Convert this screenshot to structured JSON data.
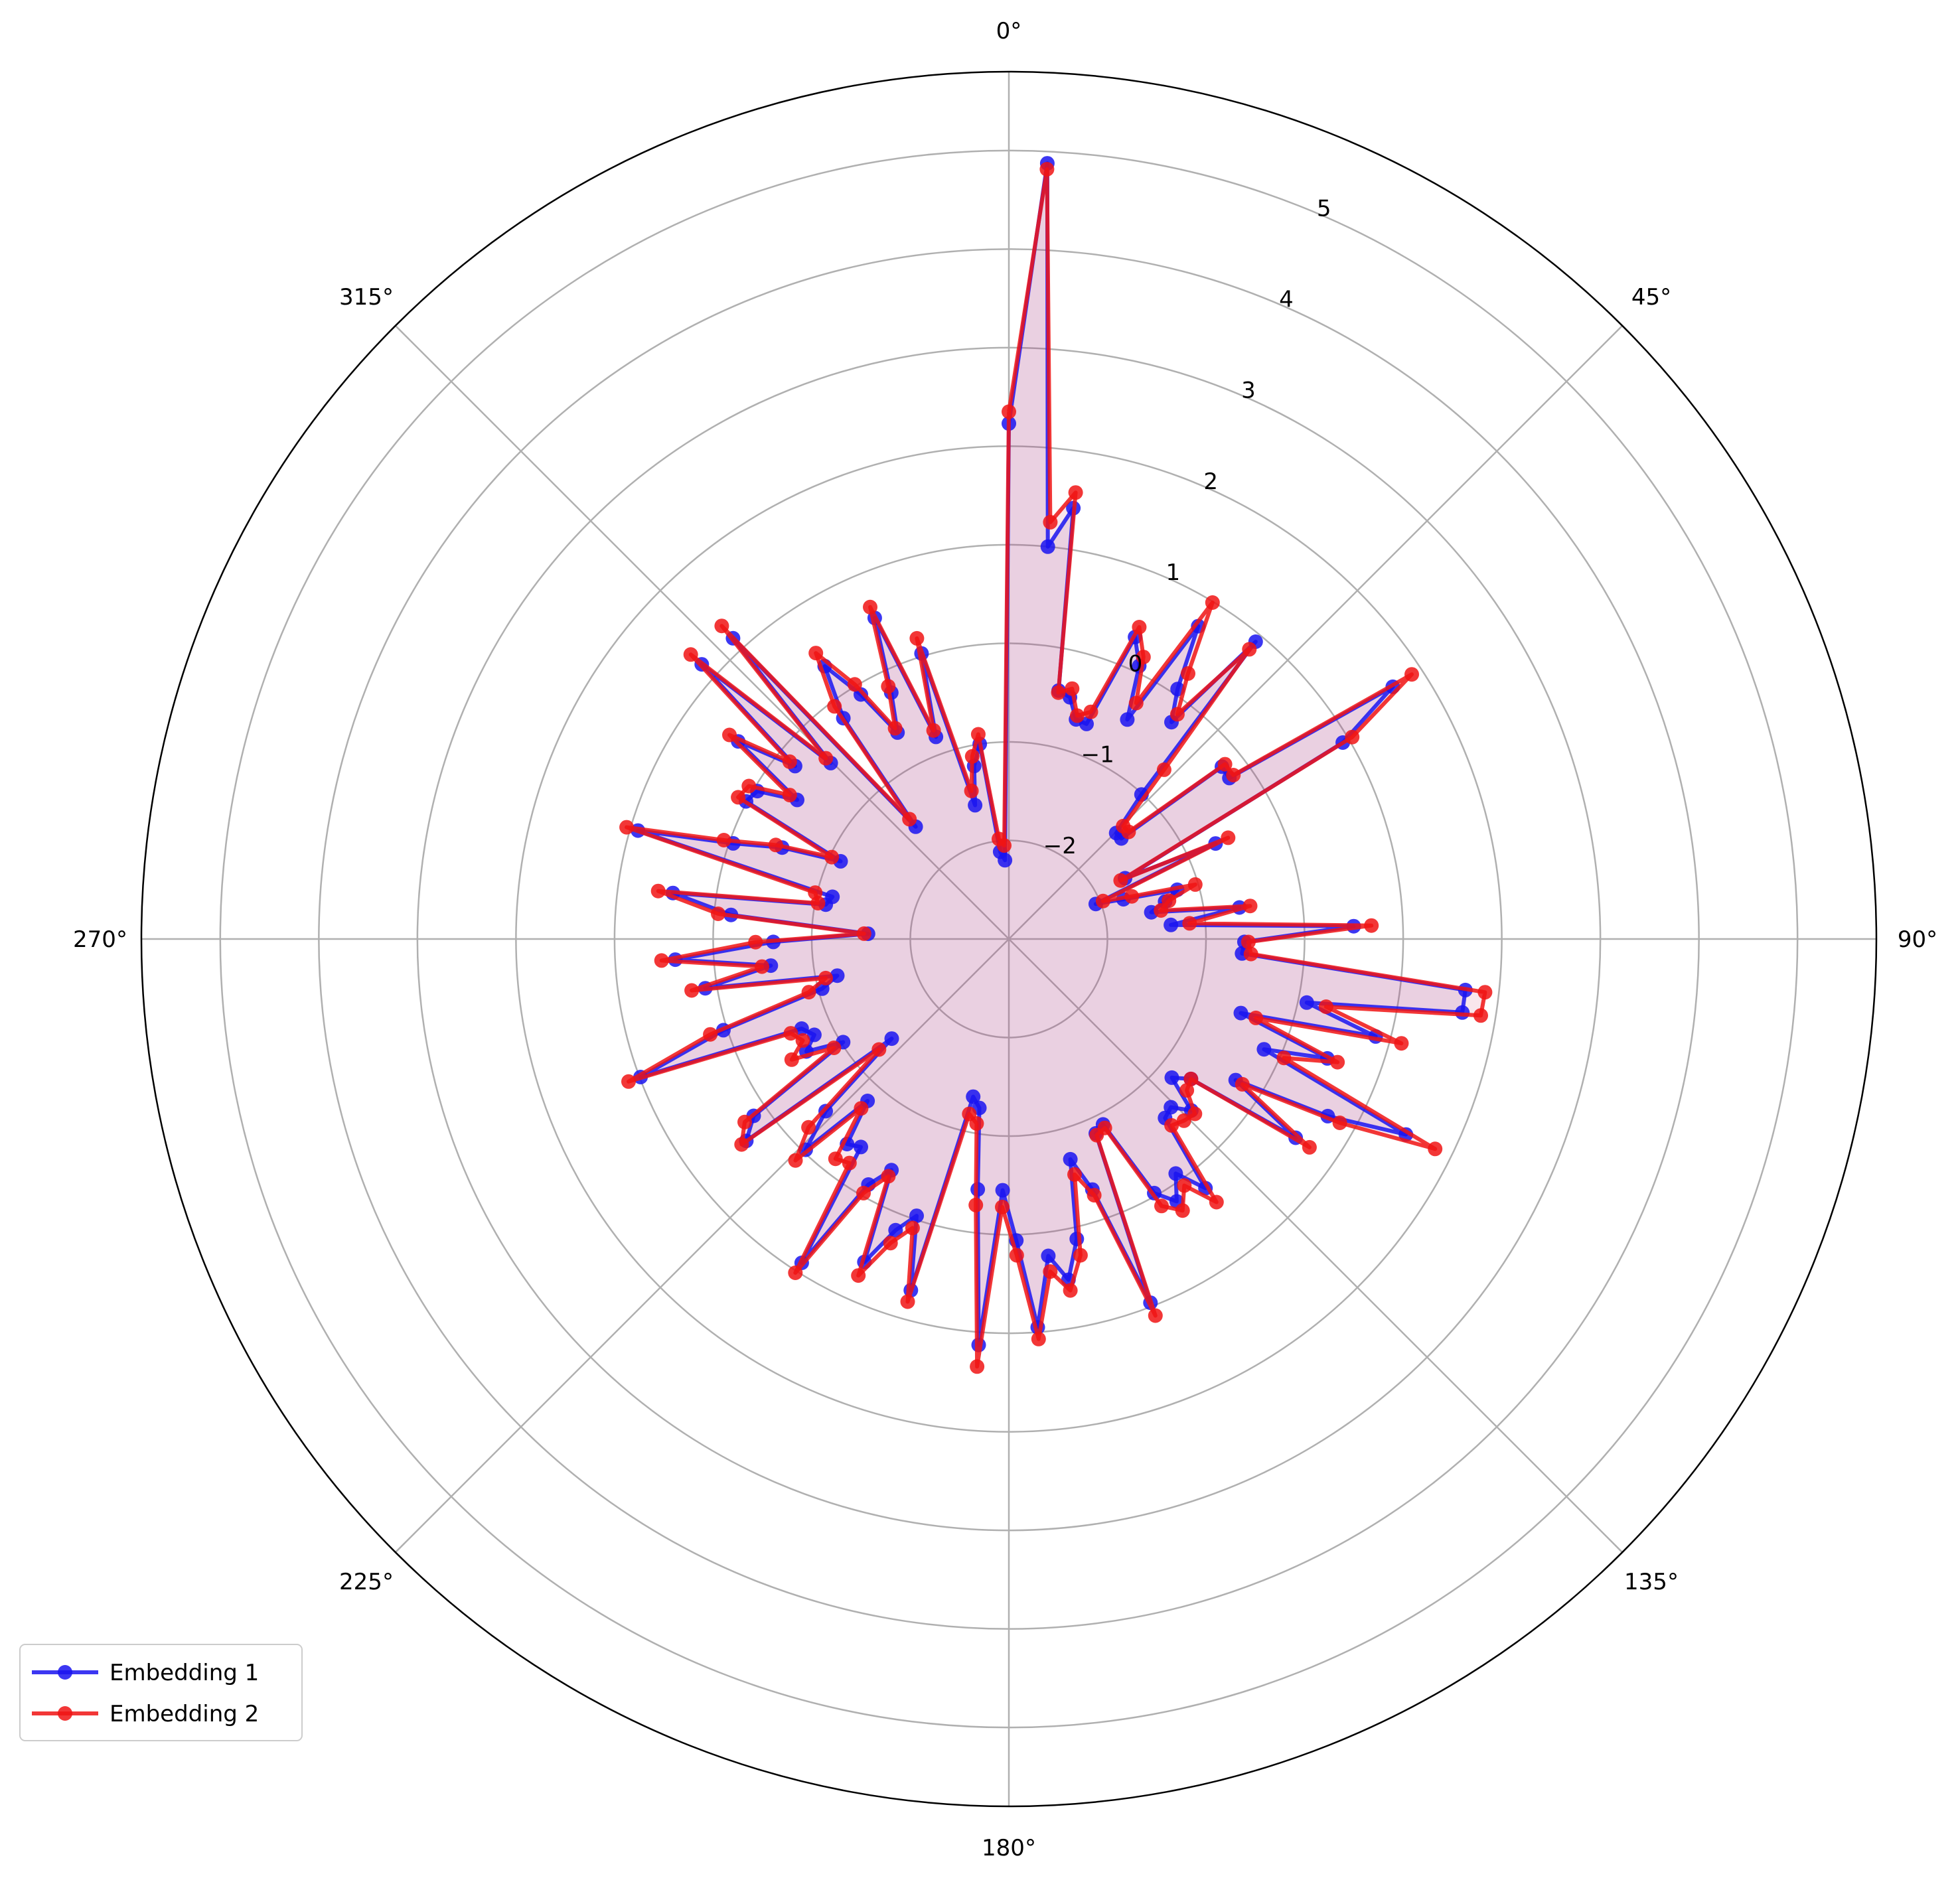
{
  "chart_data": {
    "type": "radar",
    "title": "",
    "angle_ticks": [
      "0°",
      "45°",
      "90°",
      "135°",
      "180°",
      "225°",
      "270°",
      "315°"
    ],
    "radial_ticks": [
      -2,
      -1,
      0,
      1,
      2,
      3,
      4,
      5
    ],
    "radial_tick_labels": [
      "−2",
      "−1",
      "0",
      "1",
      "2",
      "3",
      "4",
      "5"
    ],
    "rlim": [
      -3.0,
      5.8
    ],
    "theta_zero": "top",
    "theta_direction": "clockwise",
    "grid": true,
    "fill_color": "#e7cde6",
    "legend": {
      "location": "lower-left",
      "entries": [
        "Embedding 1",
        "Embedding 2"
      ]
    },
    "series": [
      {
        "name": "Embedding 1",
        "color": "#1a14f0",
        "values": [
          2.23,
          4.88,
          1.0,
          1.42,
          -0.43,
          -0.47,
          -0.67,
          -0.68,
          0.32,
          0.07,
          -0.47,
          0.71,
          0.06,
          -0.25,
          0.92,
          -1.01,
          -1.47,
          -1.47,
          -0.22,
          -0.23,
          1.66,
          0.93,
          -1.67,
          -0.69,
          -2.05,
          -1.77,
          -1.22,
          -1.37,
          -1.53,
          -0.64,
          -1.35,
          0.5,
          -0.61,
          -0.63,
          1.66,
          1.66,
          0.09,
          0.85,
          -0.53,
          0.45,
          -0.18,
          1.49,
          0.7,
          -0.29,
          0.54,
          -0.67,
          -0.83,
          -0.46,
          -0.63,
          -0.59,
          0.22,
          -0.08,
          0.16,
          -0.03,
          -0.89,
          -0.84,
          0.96,
          -0.32,
          -0.68,
          0.12,
          0.51,
          0.24,
          0.95,
          0.06,
          -0.45,
          1.13,
          -0.44,
          -1.26,
          -1.36,
          0.7,
          -0.04,
          0.17,
          0.59,
          -0.37,
          -0.13,
          0.9,
          -0.41,
          -0.35,
          -0.82,
          -0.03,
          -0.45,
          -1.44,
          0.36,
          0.15,
          -1.02,
          -0.65,
          -0.8,
          -0.71,
          0.99,
          0.04,
          -1.04,
          -1.22,
          0.12,
          -0.57,
          0.39,
          -0.61,
          -1.57,
          -0.17,
          0.44,
          -1.11,
          -1.16,
          0.92,
          -0.04,
          -0.52,
          -1.12,
          0.01,
          -0.04,
          -0.43,
          0.4,
          -0.21,
          1.18,
          -0.46,
          1.14,
          -1.52,
          -0.2,
          0.34,
          -0.1,
          -0.62,
          -0.23,
          0.53,
          -0.82,
          0.03,
          -1.6,
          -1.21,
          -1.0,
          -2.11,
          -2.2
        ],
        "values_note": ""
      },
      {
        "name": "Embedding 2",
        "color": "#f01414",
        "values": [
          2.35,
          4.82,
          1.25,
          1.58,
          -0.45,
          -0.38,
          -0.63,
          -0.55,
          0.43,
          0.17,
          -0.28,
          0.99,
          0.25,
          -0.15,
          0.82,
          -0.67,
          -1.37,
          -1.37,
          -0.18,
          -0.18,
          1.89,
          1.04,
          -1.72,
          -0.55,
          -1.97,
          -1.68,
          -1.03,
          -1.33,
          -1.43,
          -0.53,
          -1.16,
          0.68,
          -0.57,
          -0.54,
          1.86,
          1.85,
          0.29,
          1.12,
          -0.37,
          0.56,
          0.04,
          1.82,
          0.84,
          -0.21,
          0.71,
          -0.67,
          -0.63,
          -0.41,
          -0.44,
          -0.49,
          0.4,
          0.07,
          0.27,
          0.12,
          -0.85,
          -0.82,
          1.1,
          -0.26,
          -0.52,
          0.29,
          0.62,
          0.4,
          1.07,
          0.21,
          -0.28,
          1.35,
          -0.28,
          -1.1,
          -1.18,
          0.82,
          0.09,
          0.31,
          0.74,
          -0.3,
          -0.03,
          1.02,
          -0.21,
          -0.16,
          -0.72,
          0.12,
          -0.21,
          -1.27,
          0.42,
          0.26,
          -0.91,
          -0.48,
          -0.67,
          -0.59,
          1.12,
          0.18,
          -0.9,
          -1.1,
          0.26,
          -0.48,
          0.53,
          -0.43,
          -1.53,
          -0.04,
          0.59,
          -1.03,
          -0.98,
          1.04,
          0.06,
          -0.45,
          -1.02,
          0.1,
          0.06,
          -0.34,
          0.51,
          -0.14,
          1.33,
          -0.39,
          1.31,
          -1.42,
          -0.05,
          0.5,
          0.02,
          -0.57,
          -0.16,
          0.65,
          -0.75,
          0.19,
          -1.45,
          -1.11,
          -0.9,
          -1.98,
          -2.05
        ],
        "values_note": ""
      }
    ]
  }
}
